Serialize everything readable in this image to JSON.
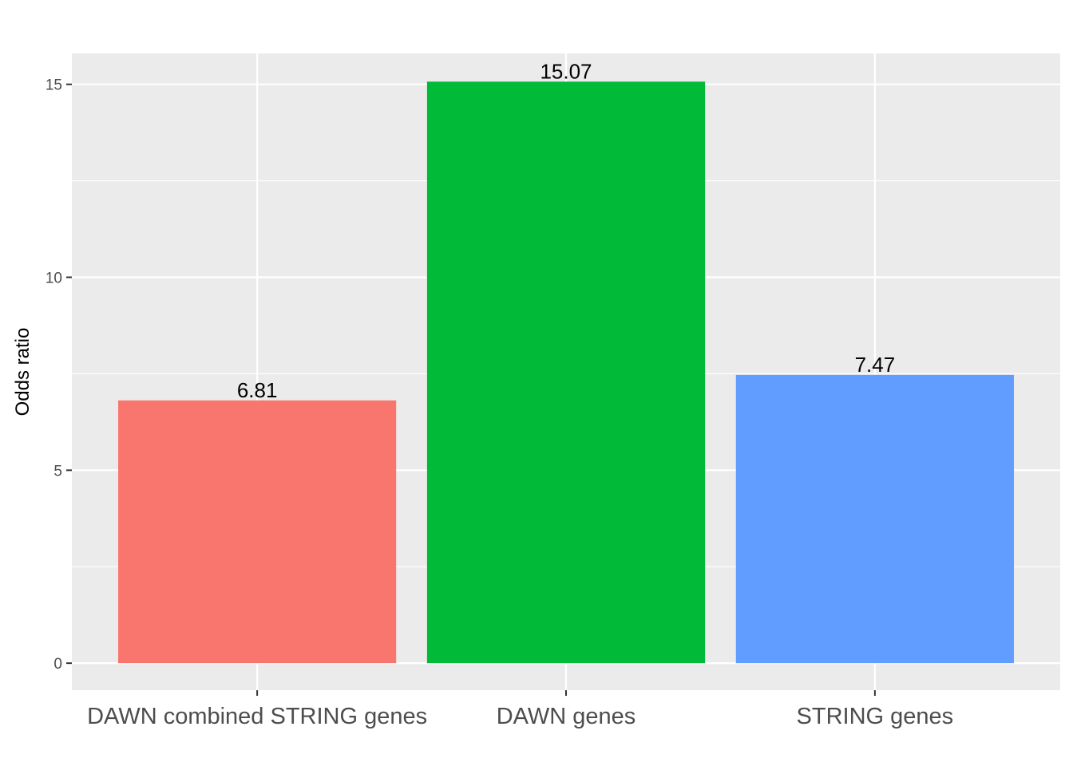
{
  "chart_data": {
    "type": "bar",
    "categories": [
      "DAWN combined STRING genes",
      "DAWN genes",
      "STRING genes"
    ],
    "values": [
      6.81,
      15.07,
      7.47
    ],
    "value_labels": [
      "6.81",
      "15.07",
      "7.47"
    ],
    "colors": [
      "#F8766D",
      "#00BA38",
      "#619CFF"
    ],
    "ylabel": "Odds ratio",
    "xlabel": "",
    "ylim": [
      -0.7,
      15.8
    ],
    "yticks": [
      0,
      5,
      10,
      15
    ],
    "ytick_labels": [
      "0",
      "5",
      "10",
      "15"
    ],
    "grid": true,
    "panel_background": "#EBEBEB",
    "legend": "none"
  }
}
